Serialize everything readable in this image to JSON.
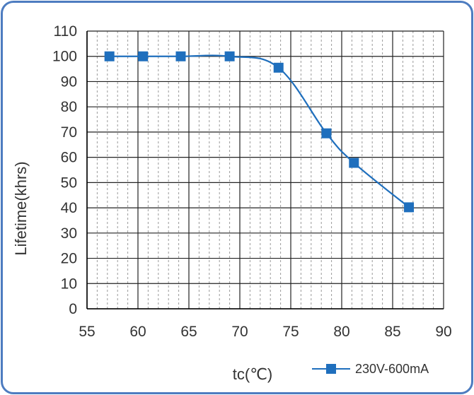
{
  "chart_data": {
    "type": "line",
    "title": "",
    "xlabel": "tc(℃)",
    "ylabel": "Lifetime(khrs)",
    "xlim": [
      55,
      90
    ],
    "ylim": [
      0,
      110
    ],
    "x_ticks": [
      55,
      60,
      65,
      70,
      75,
      80,
      85,
      90
    ],
    "y_ticks": [
      0,
      10,
      20,
      30,
      40,
      50,
      60,
      70,
      80,
      90,
      100,
      110
    ],
    "grid": true,
    "legend_position": "bottom-right",
    "series": [
      {
        "name": "230V-600mA",
        "color": "#1f6fbd",
        "marker": "square",
        "x": [
          57.2,
          60.5,
          64.2,
          69,
          73.8,
          78.5,
          81.2,
          86.6
        ],
        "y": [
          100,
          100,
          100,
          100,
          95.5,
          69.5,
          57.8,
          40.2
        ]
      }
    ]
  }
}
